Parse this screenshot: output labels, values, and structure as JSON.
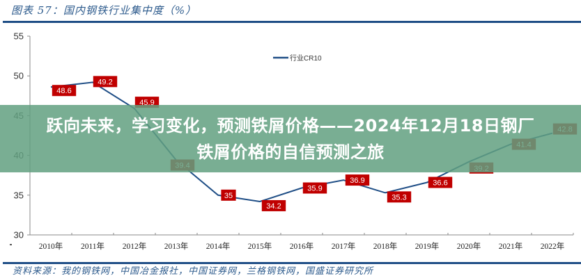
{
  "figure": {
    "title": "图表 57：国内钢铁行业集中度（%）",
    "source": "资料来源：我的钢铁网，中国冶金报社，中国证券网，兰格钢铁网，国盛证券研究所"
  },
  "banner": {
    "text": "跃向未来，学习变化，预测铁屑价格——2024年12月18日钢厂铁屑价格的自信预测之旅",
    "color": "#62a080"
  },
  "colors": {
    "line": "#1f4e86",
    "label_bg": "#c00000",
    "rule": "#1f4e86"
  },
  "chart_data": {
    "type": "line",
    "title": "国内钢铁行业集中度（%）",
    "xlabel": "",
    "ylabel": "",
    "categories": [
      "2010年",
      "2011年",
      "2012年",
      "2013年",
      "2014年",
      "2015年",
      "2016年",
      "2017年",
      "2018年",
      "2019年",
      "2020年",
      "2021年",
      "2022年"
    ],
    "series": [
      {
        "name": "行业CR10",
        "values": [
          48.6,
          49.2,
          45.9,
          39.4,
          35,
          34.2,
          35.9,
          36.9,
          35.3,
          36.6,
          39.2,
          41.4,
          42.8
        ],
        "labels": [
          "48.6",
          "49.2",
          "45.9",
          "39.4",
          "35",
          "34.2",
          "35.9",
          "36.9",
          "35.3",
          "36.6",
          "39.2",
          "41.4",
          "42.8"
        ]
      }
    ],
    "yticks": [
      "55",
      "50",
      "45",
      "40",
      "35",
      "30"
    ],
    "ylim": [
      30,
      55
    ],
    "grid": false,
    "legend_position": "top-center"
  }
}
